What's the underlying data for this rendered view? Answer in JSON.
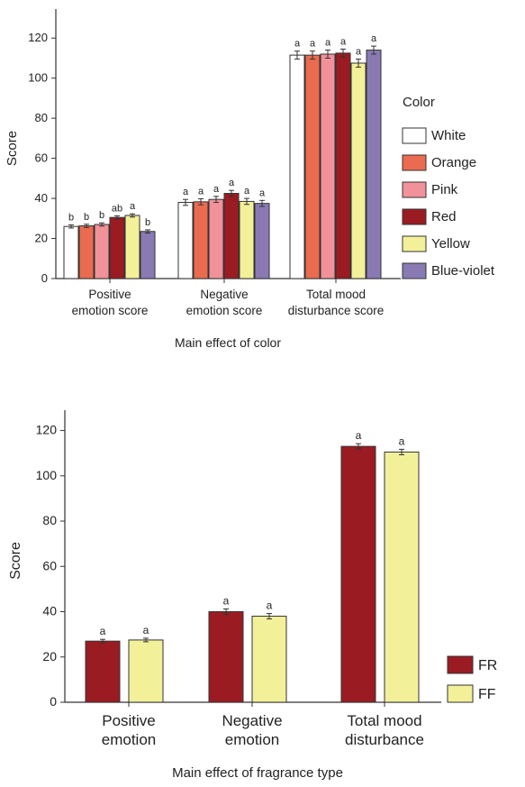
{
  "chart_data": [
    {
      "type": "bar",
      "title": "Main effect of color",
      "ylabel": "Score",
      "ylim": [
        0,
        130
      ],
      "yticks": [
        0,
        20,
        40,
        60,
        80,
        100,
        120
      ],
      "categories": [
        [
          "Positive",
          "emotion score"
        ],
        [
          "Negative",
          "emotion score"
        ],
        [
          "Total mood",
          "disturbance score"
        ]
      ],
      "legend_title": "Color",
      "legend_position": "right",
      "series": [
        {
          "name": "White",
          "color": "#ffffff",
          "values": [
            26,
            38,
            111.5
          ],
          "errors": [
            0.8,
            1.5,
            2
          ],
          "letters": [
            "b",
            "a",
            "a"
          ]
        },
        {
          "name": "Orange",
          "color": "#ea6b4f",
          "values": [
            26.3,
            38.3,
            111.5
          ],
          "errors": [
            0.8,
            1.5,
            2
          ],
          "letters": [
            "b",
            "a",
            "a"
          ]
        },
        {
          "name": "Pink",
          "color": "#f1919a",
          "values": [
            27,
            39.5,
            112
          ],
          "errors": [
            0.8,
            1.5,
            2
          ],
          "letters": [
            "b",
            "a",
            "a"
          ]
        },
        {
          "name": "Red",
          "color": "#9a1c22",
          "values": [
            30.5,
            42.5,
            112.5
          ],
          "errors": [
            0.8,
            1.5,
            2
          ],
          "letters": [
            "ab",
            "a",
            "a"
          ]
        },
        {
          "name": "Yellow",
          "color": "#f3f09a",
          "values": [
            31.5,
            38.5,
            107.5
          ],
          "errors": [
            0.8,
            1.5,
            2
          ],
          "letters": [
            "a",
            "a",
            "a"
          ]
        },
        {
          "name": "Blue-violet",
          "color": "#8a7ab4",
          "values": [
            23.5,
            37.5,
            114
          ],
          "errors": [
            0.8,
            1.5,
            2
          ],
          "letters": [
            "b",
            "a",
            "a"
          ]
        }
      ]
    },
    {
      "type": "bar",
      "title": "Main effect of fragrance type",
      "ylabel": "Score",
      "ylim": [
        0,
        125
      ],
      "yticks": [
        0,
        20,
        40,
        60,
        80,
        100,
        120
      ],
      "categories": [
        [
          "Positive",
          "emotion"
        ],
        [
          "Negative",
          "emotion"
        ],
        [
          "Total mood",
          "disturbance"
        ]
      ],
      "legend_position": "bottom-right",
      "series": [
        {
          "name": "FR",
          "color": "#9a1c22",
          "values": [
            27,
            40,
            113
          ],
          "errors": [
            0.8,
            1.2,
            1.2
          ],
          "letters": [
            "a",
            "a",
            "a"
          ]
        },
        {
          "name": "FF",
          "color": "#f3f09a",
          "values": [
            27.5,
            38,
            110.5
          ],
          "errors": [
            0.8,
            1.2,
            1.2
          ],
          "letters": [
            "a",
            "a",
            "a"
          ]
        }
      ]
    }
  ]
}
